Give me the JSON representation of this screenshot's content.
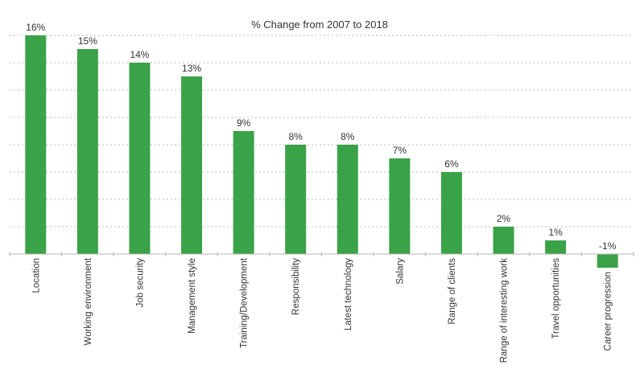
{
  "chart_data": {
    "type": "bar",
    "title": "% Change from 2007 to 2018",
    "xlabel": "",
    "ylabel": "",
    "categories": [
      "Location",
      "Working environment",
      "Job security",
      "Management style",
      "Training/Development",
      "Responsibility",
      "Latest technology",
      "Salary",
      "Range of clients",
      "Range of interesting work",
      "Travel opportunities",
      "Career progression"
    ],
    "values": [
      16,
      15,
      14,
      13,
      9,
      8,
      8,
      7,
      6,
      2,
      1,
      -1
    ],
    "data_labels": [
      "16%",
      "15%",
      "14%",
      "13%",
      "9%",
      "8%",
      "8%",
      "7%",
      "6%",
      "2%",
      "1%",
      "-1%"
    ],
    "ylim": [
      -1,
      16
    ],
    "grid": true,
    "legend": "none",
    "colors": {
      "bar": "#3aa348",
      "grid": "#b9b9b9",
      "text": "#333333"
    }
  }
}
